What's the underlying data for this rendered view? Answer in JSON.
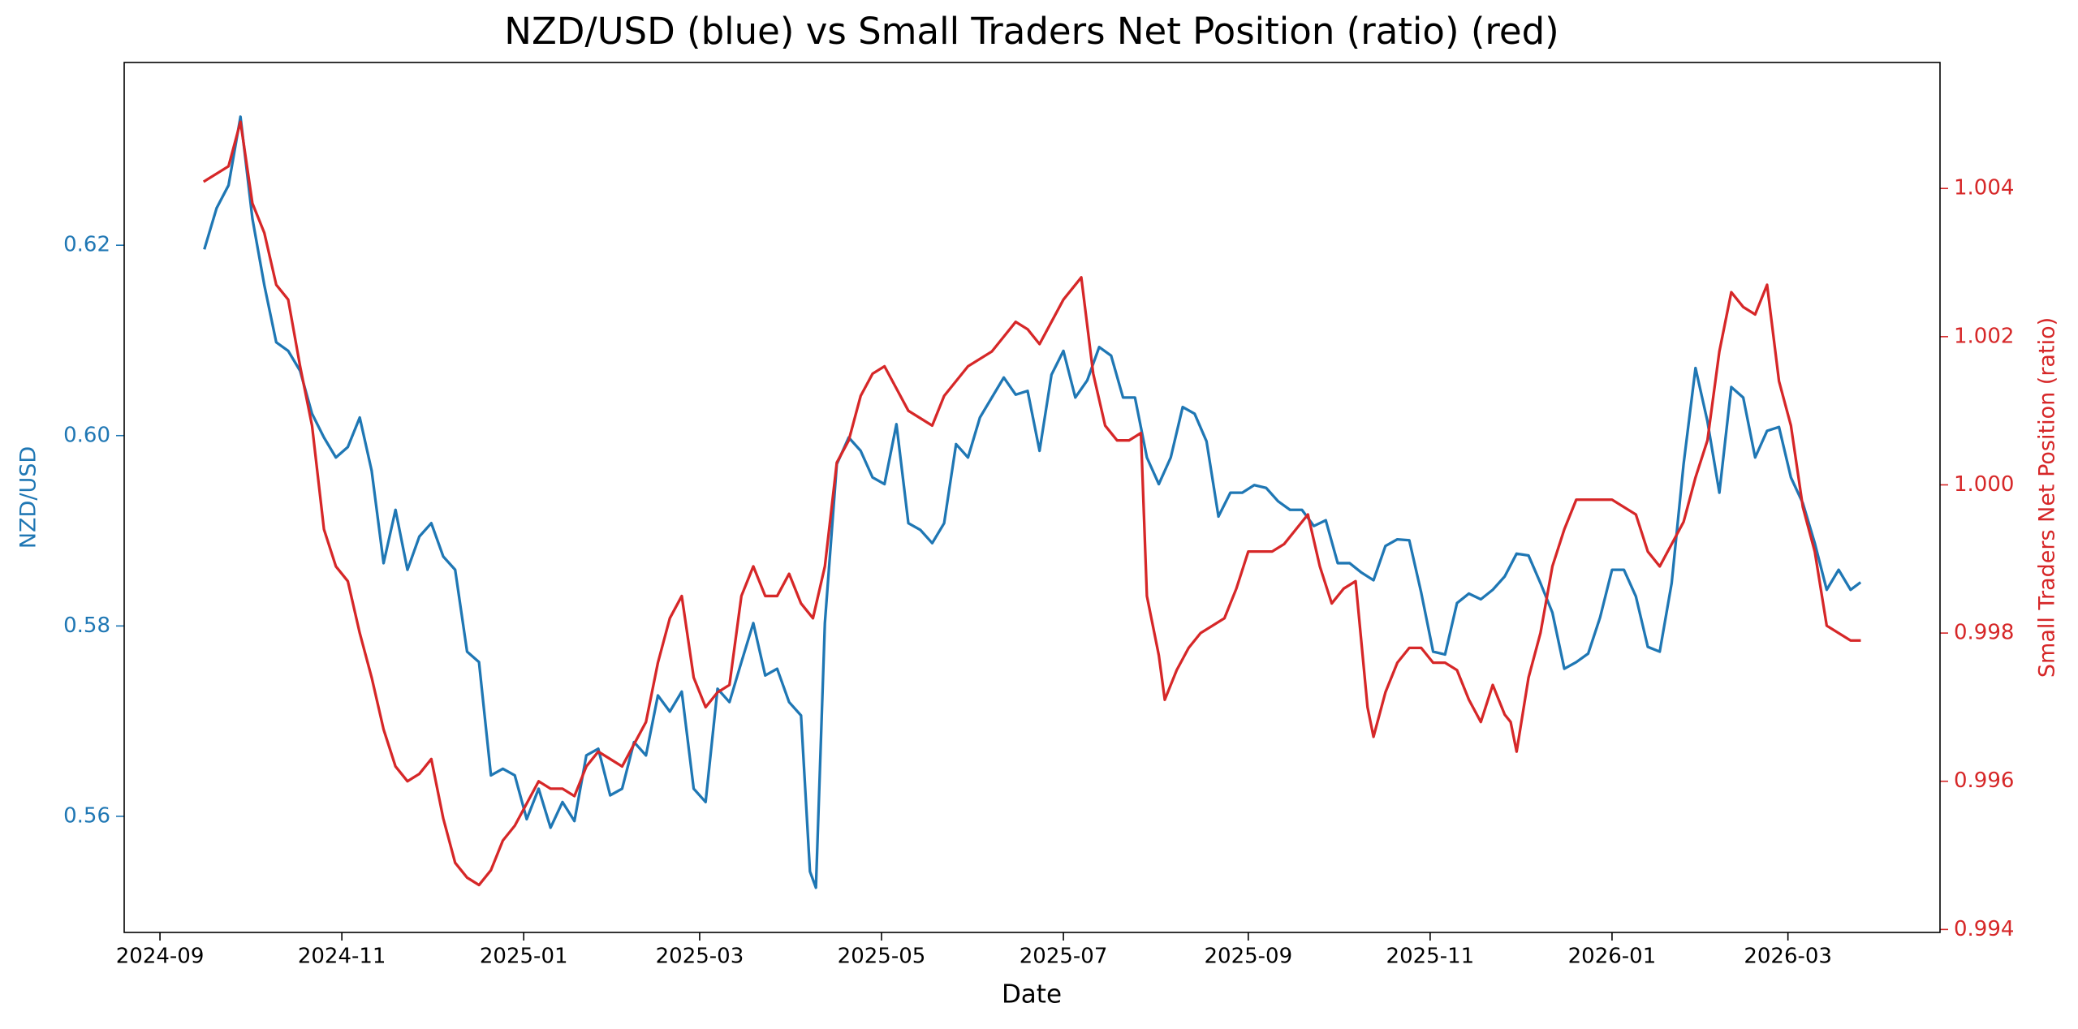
{
  "chart_data": {
    "type": "line",
    "title": "NZD/USD (blue) vs Small Traders Net Position (ratio) (red)",
    "xlabel": "Date",
    "ylabel": "NZD/USD",
    "y2label": "Small Traders Net Position (ratio)",
    "xlim": [
      19955,
      20564
    ],
    "xticks": [
      {
        "value": 19967,
        "label": "2024-09"
      },
      {
        "value": 20028,
        "label": "2024-11"
      },
      {
        "value": 20089,
        "label": "2025-01"
      },
      {
        "value": 20148,
        "label": "2025-03"
      },
      {
        "value": 20209,
        "label": "2025-05"
      },
      {
        "value": 20270,
        "label": "2025-07"
      },
      {
        "value": 20332,
        "label": "2025-09"
      },
      {
        "value": 20393,
        "label": "2025-11"
      },
      {
        "value": 20454,
        "label": "2026-01"
      },
      {
        "value": 20513,
        "label": "2026-03"
      }
    ],
    "ylim": [
      0.5478,
      0.6392
    ],
    "yticks": [
      0.56,
      0.58,
      {
        "value": 0.6,
        "label": "0.60"
      },
      0.62
    ],
    "y2lim": [
      0.99396,
      1.0057
    ],
    "y2ticks": [
      0.994,
      0.996,
      0.998,
      {
        "value": 1,
        "label": "1.000"
      },
      1.002,
      1.004
    ],
    "grid": false,
    "series": [
      {
        "color": "#1f77b4",
        "axis": "y",
        "x": [
          19982,
          19986,
          19990,
          19994,
          19998,
          20002,
          20006,
          20010,
          20014,
          20018,
          20022,
          20026,
          20030,
          20034,
          20038,
          20042,
          20046,
          20050,
          20054,
          20058,
          20062,
          20066,
          20070,
          20074,
          20078,
          20082,
          20086,
          20090,
          20094,
          20098,
          20102,
          20106,
          20110,
          20114,
          20118,
          20122,
          20126,
          20130,
          20134,
          20138,
          20142,
          20146,
          20150,
          20154,
          20158,
          20162,
          20166,
          20170,
          20174,
          20178,
          20182,
          20185,
          20187,
          20190,
          20194,
          20198,
          20202,
          20206,
          20210,
          20214,
          20218,
          20222,
          20226,
          20230,
          20234,
          20238,
          20242,
          20246,
          20250,
          20254,
          20258,
          20262,
          20266,
          20270,
          20274,
          20278,
          20282,
          20286,
          20290,
          20294,
          20298,
          20302,
          20306,
          20310,
          20314,
          20318,
          20322,
          20326,
          20330,
          20334,
          20338,
          20342,
          20346,
          20350,
          20354,
          20358,
          20362,
          20366,
          20370,
          20374,
          20378,
          20382,
          20386,
          20390,
          20394,
          20398,
          20402,
          20406,
          20410,
          20414,
          20418,
          20422,
          20426,
          20430,
          20434,
          20438,
          20442,
          20446,
          20450,
          20454,
          20458,
          20462,
          20466,
          20470,
          20474,
          20478,
          20482,
          20486,
          20490,
          20494,
          20498,
          20502,
          20506,
          20510,
          20514,
          20518,
          20522,
          20526,
          20530,
          20534,
          20537
        ],
        "values": [
          0.6197,
          0.6239,
          0.6263,
          0.6335,
          0.6228,
          0.6158,
          0.6098,
          0.6089,
          0.6068,
          0.6023,
          0.5998,
          0.5977,
          0.5988,
          0.6019,
          0.5963,
          0.5866,
          0.5922,
          0.5859,
          0.5894,
          0.5908,
          0.5873,
          0.5859,
          0.5773,
          0.5762,
          0.5643,
          0.565,
          0.5643,
          0.5597,
          0.5629,
          0.5588,
          0.5615,
          0.5595,
          0.5664,
          0.5671,
          0.5622,
          0.5629,
          0.5678,
          0.5664,
          0.5727,
          0.571,
          0.5731,
          0.5629,
          0.5615,
          0.5734,
          0.572,
          0.5762,
          0.5803,
          0.5748,
          0.5755,
          0.572,
          0.5706,
          0.5542,
          0.5525,
          0.5803,
          0.597,
          0.5998,
          0.5984,
          0.5956,
          0.5949,
          0.6012,
          0.5908,
          0.5901,
          0.5887,
          0.5908,
          0.5991,
          0.5977,
          0.6019,
          0.604,
          0.6061,
          0.6043,
          0.6047,
          0.5984,
          0.6064,
          0.6089,
          0.604,
          0.6058,
          0.6093,
          0.6084,
          0.604,
          0.604,
          0.5977,
          0.5949,
          0.5977,
          0.603,
          0.6023,
          0.5994,
          0.5915,
          0.594,
          0.594,
          0.5948,
          0.5945,
          0.5931,
          0.5922,
          0.5922,
          0.5905,
          0.5911,
          0.5866,
          0.5866,
          0.5856,
          0.5848,
          0.5884,
          0.5891,
          0.589,
          0.5835,
          0.5773,
          0.577,
          0.5824,
          0.5834,
          0.5828,
          0.5838,
          0.5852,
          0.5876,
          0.5874,
          0.5845,
          0.5814,
          0.5755,
          0.5762,
          0.5771,
          0.5809,
          0.5859,
          0.5859,
          0.5831,
          0.5778,
          0.5773,
          0.5845,
          0.597,
          0.6071,
          0.6015,
          0.594,
          0.6051,
          0.604,
          0.5977,
          0.6005,
          0.6009,
          0.5956,
          0.5929,
          0.5887,
          0.5838,
          0.5859,
          0.5838,
          0.5845
        ]
      },
      {
        "color": "#d62728",
        "axis": "y2",
        "x": [
          19982,
          19986,
          19990,
          19994,
          19998,
          20002,
          20006,
          20010,
          20014,
          20018,
          20022,
          20026,
          20030,
          20034,
          20038,
          20042,
          20046,
          20050,
          20054,
          20058,
          20062,
          20066,
          20070,
          20074,
          20078,
          20082,
          20086,
          20090,
          20094,
          20098,
          20102,
          20106,
          20110,
          20114,
          20118,
          20122,
          20126,
          20130,
          20134,
          20138,
          20142,
          20146,
          20150,
          20154,
          20158,
          20162,
          20166,
          20170,
          20174,
          20178,
          20182,
          20186,
          20190,
          20194,
          20198,
          20202,
          20206,
          20210,
          20214,
          20218,
          20222,
          20226,
          20230,
          20234,
          20238,
          20242,
          20246,
          20250,
          20254,
          20258,
          20262,
          20266,
          20270,
          20274,
          20276,
          20280,
          20284,
          20288,
          20292,
          20296,
          20298,
          20302,
          20304,
          20308,
          20312,
          20316,
          20320,
          20324,
          20328,
          20332,
          20336,
          20340,
          20344,
          20348,
          20352,
          20356,
          20360,
          20364,
          20368,
          20372,
          20374,
          20378,
          20382,
          20386,
          20390,
          20394,
          20398,
          20402,
          20406,
          20410,
          20414,
          20418,
          20420,
          20422,
          20426,
          20430,
          20434,
          20438,
          20442,
          20446,
          20450,
          20454,
          20458,
          20462,
          20466,
          20470,
          20474,
          20478,
          20482,
          20486,
          20490,
          20494,
          20498,
          20502,
          20506,
          20510,
          20514,
          20518,
          20522,
          20526,
          20530,
          20534,
          20537
        ],
        "values": [
          1.0041,
          1.0042,
          1.0043,
          1.0049,
          1.0038,
          1.0034,
          1.0027,
          1.0025,
          1.0016,
          1.0008,
          0.9994,
          0.9989,
          0.9987,
          0.998,
          0.9974,
          0.9967,
          0.9962,
          0.996,
          0.9961,
          0.9963,
          0.9955,
          0.9949,
          0.9947,
          0.9946,
          0.9948,
          0.9952,
          0.9954,
          0.9957,
          0.996,
          0.9959,
          0.9959,
          0.9958,
          0.9962,
          0.9964,
          0.9963,
          0.9962,
          0.9965,
          0.9968,
          0.9976,
          0.9982,
          0.9985,
          0.9974,
          0.997,
          0.9972,
          0.9973,
          0.9985,
          0.9989,
          0.9985,
          0.9985,
          0.9988,
          0.9984,
          0.9982,
          0.9989,
          1.0003,
          1.0006,
          1.0012,
          1.0015,
          1.0016,
          1.0013,
          1.001,
          1.0009,
          1.0008,
          1.0012,
          1.0014,
          1.0016,
          1.0017,
          1.0018,
          1.002,
          1.0022,
          1.0021,
          1.0019,
          1.0022,
          1.0025,
          1.0027,
          1.0028,
          1.0015,
          1.0008,
          1.0006,
          1.0006,
          1.0007,
          0.9985,
          0.9977,
          0.9971,
          0.9975,
          0.9978,
          0.998,
          0.9981,
          0.9982,
          0.9986,
          0.9991,
          0.9991,
          0.9991,
          0.9992,
          0.9994,
          0.9996,
          0.9989,
          0.9984,
          0.9986,
          0.9987,
          0.997,
          0.9966,
          0.9972,
          0.9976,
          0.9978,
          0.9978,
          0.9976,
          0.9976,
          0.9975,
          0.9971,
          0.9968,
          0.9973,
          0.9969,
          0.9968,
          0.9964,
          0.9974,
          0.998,
          0.9989,
          0.9994,
          0.9998,
          0.9998,
          0.9998,
          0.9998,
          0.9997,
          0.9996,
          0.9991,
          0.9989,
          0.9992,
          0.9995,
          1.0001,
          1.0006,
          1.0018,
          1.0026,
          1.0024,
          1.0023,
          1.0027,
          1.0014,
          1.0008,
          0.9997,
          0.9991,
          0.9981,
          0.998,
          0.9979,
          0.9979
        ]
      }
    ]
  }
}
